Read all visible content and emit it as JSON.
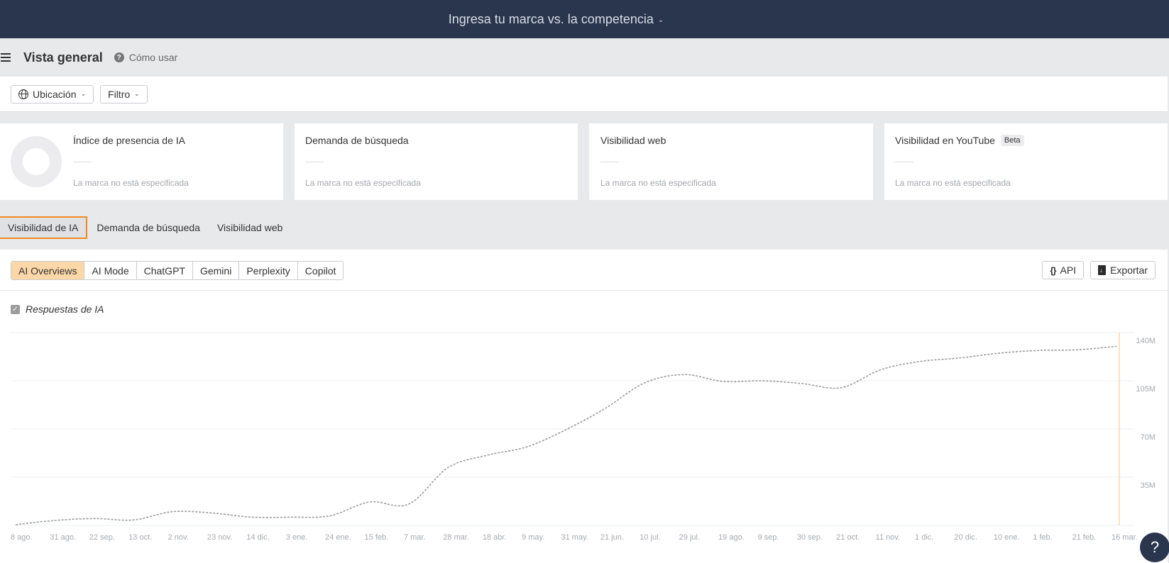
{
  "topbar": {
    "brand_select_label": "Ingresa tu marca vs. la competencia",
    "chevron": "⌄"
  },
  "header": {
    "title": "Vista general",
    "howto_label": "Cómo usar",
    "help_icon": "?"
  },
  "filters": {
    "location_label": "Ubicación",
    "filter_label": "Filtro",
    "chevron": "⌄"
  },
  "cards": [
    {
      "title": "Índice de presencia de IA",
      "value": "—",
      "subtitle": "La marca no está especificada"
    },
    {
      "title": "Demanda de búsqueda",
      "value": "—",
      "subtitle": "La marca no está especificada"
    },
    {
      "title": "Visibilidad web",
      "value": "—",
      "subtitle": "La marca no está especificada"
    },
    {
      "title": "Visibilidad en YouTube",
      "badge": "Beta",
      "value": "—",
      "subtitle": "La marca no está especificada"
    }
  ],
  "tabs": [
    {
      "label": "Visibilidad de IA",
      "active": true
    },
    {
      "label": "Demanda de búsqueda",
      "active": false
    },
    {
      "label": "Visibilidad web",
      "active": false
    }
  ],
  "engines": [
    {
      "label": "AI Overviews",
      "active": true
    },
    {
      "label": "AI Mode",
      "active": false
    },
    {
      "label": "ChatGPT",
      "active": false
    },
    {
      "label": "Gemini",
      "active": false
    },
    {
      "label": "Perplexity",
      "active": false
    },
    {
      "label": "Copilot",
      "active": false
    }
  ],
  "actions": {
    "api_label": "API",
    "export_label": "Exportar",
    "api_icon": "{}"
  },
  "legend": {
    "label": "Respuestas de IA",
    "checked": true,
    "check_glyph": "✓"
  },
  "colors": {
    "accent": "#f08a24",
    "active_engine_bg": "#fcd8a8",
    "topbar": "#2a364e",
    "series": "#9a9a9a",
    "marker_line": "#fcd8a8"
  },
  "help_fab": {
    "label": "?"
  },
  "chart_data": {
    "type": "line",
    "title": "",
    "xlabel": "",
    "ylabel": "",
    "ylim": [
      0,
      140000000
    ],
    "yticks": [
      "35M",
      "70M",
      "105M",
      "140M"
    ],
    "grid": true,
    "legend_position": "top-left",
    "categories": [
      "8 ago.",
      "31 ago.",
      "22 sep.",
      "13 oct.",
      "2 nov.",
      "23 nov.",
      "14 dic.",
      "3 ene.",
      "24 ene.",
      "15 feb.",
      "7 mar.",
      "28 mar.",
      "18 abr.",
      "9 may.",
      "31 may.",
      "21 jun.",
      "10 jul.",
      "29 jul.",
      "19 ago.",
      "9 sep.",
      "30 sep.",
      "21 oct.",
      "11 nov.",
      "1 dic.",
      "20 dic.",
      "10 ene.",
      "1 feb.",
      "21 feb.",
      "16 mar."
    ],
    "series": [
      {
        "name": "Respuestas de IA",
        "style": "dashed",
        "values_millions": [
          0.5,
          3.6,
          5,
          4,
          10,
          9,
          6,
          6,
          7,
          17,
          15.5,
          42,
          51,
          57,
          69.5,
          85,
          103.5,
          109.5,
          104.5,
          105,
          103,
          100,
          113,
          119,
          121.5,
          125,
          127,
          127.5,
          130
        ]
      }
    ],
    "marker": {
      "label": "16 mar.",
      "style": "vertical-line"
    }
  }
}
